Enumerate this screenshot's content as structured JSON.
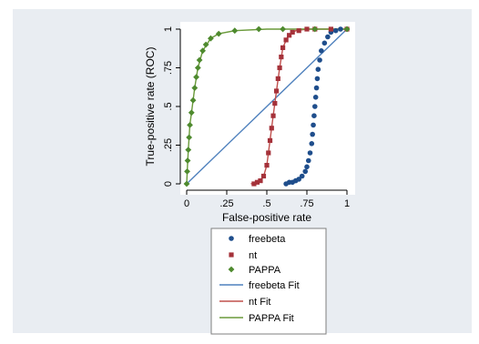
{
  "chart_data": {
    "type": "scatter",
    "title": "",
    "xlabel": "False-positive rate",
    "ylabel": "True-positive rate (ROC)",
    "xlim": [
      0,
      1
    ],
    "ylim": [
      0,
      1
    ],
    "x_ticks": [
      "0",
      ".25",
      ".5",
      ".75",
      "1"
    ],
    "y_ticks": [
      "0",
      ".25",
      ".5",
      ".75",
      "1"
    ],
    "grid": false,
    "legend_position": "bottom",
    "series": [
      {
        "name": "freebeta",
        "marker": "circle",
        "color": "#1f4e8c",
        "points": [
          [
            0.62,
            0
          ],
          [
            0.64,
            0.01
          ],
          [
            0.66,
            0.01
          ],
          [
            0.68,
            0.02
          ],
          [
            0.7,
            0.03
          ],
          [
            0.72,
            0.05
          ],
          [
            0.74,
            0.08
          ],
          [
            0.75,
            0.11
          ],
          [
            0.76,
            0.15
          ],
          [
            0.77,
            0.2
          ],
          [
            0.78,
            0.26
          ],
          [
            0.785,
            0.32
          ],
          [
            0.79,
            0.38
          ],
          [
            0.795,
            0.44
          ],
          [
            0.8,
            0.5
          ],
          [
            0.805,
            0.56
          ],
          [
            0.81,
            0.62
          ],
          [
            0.815,
            0.68
          ],
          [
            0.82,
            0.74
          ],
          [
            0.83,
            0.8
          ],
          [
            0.84,
            0.86
          ],
          [
            0.86,
            0.91
          ],
          [
            0.88,
            0.95
          ],
          [
            0.9,
            0.98
          ],
          [
            0.93,
            0.99
          ],
          [
            0.96,
            1.0
          ],
          [
            1.0,
            1.0
          ]
        ]
      },
      {
        "name": "nt",
        "marker": "square",
        "color": "#a5323a",
        "points": [
          [
            0.42,
            0
          ],
          [
            0.44,
            0.01
          ],
          [
            0.46,
            0.02
          ],
          [
            0.48,
            0.05
          ],
          [
            0.5,
            0.12
          ],
          [
            0.51,
            0.2
          ],
          [
            0.52,
            0.28
          ],
          [
            0.53,
            0.36
          ],
          [
            0.54,
            0.44
          ],
          [
            0.55,
            0.52
          ],
          [
            0.56,
            0.6
          ],
          [
            0.57,
            0.68
          ],
          [
            0.58,
            0.75
          ],
          [
            0.59,
            0.82
          ],
          [
            0.6,
            0.88
          ],
          [
            0.62,
            0.93
          ],
          [
            0.64,
            0.96
          ],
          [
            0.66,
            0.98
          ],
          [
            0.7,
            0.99
          ],
          [
            0.75,
            1.0
          ],
          [
            0.8,
            1.0
          ],
          [
            0.9,
            1.0
          ],
          [
            1.0,
            1.0
          ]
        ]
      },
      {
        "name": "PAPPA",
        "marker": "diamond",
        "color": "#4e8a2e",
        "points": [
          [
            0,
            0
          ],
          [
            0.003,
            0.08
          ],
          [
            0.006,
            0.15
          ],
          [
            0.01,
            0.22
          ],
          [
            0.015,
            0.3
          ],
          [
            0.02,
            0.38
          ],
          [
            0.03,
            0.46
          ],
          [
            0.04,
            0.54
          ],
          [
            0.05,
            0.62
          ],
          [
            0.06,
            0.69
          ],
          [
            0.07,
            0.75
          ],
          [
            0.08,
            0.8
          ],
          [
            0.1,
            0.86
          ],
          [
            0.12,
            0.9
          ],
          [
            0.15,
            0.94
          ],
          [
            0.2,
            0.97
          ],
          [
            0.3,
            0.99
          ],
          [
            0.45,
            1.0
          ],
          [
            0.6,
            1.0
          ],
          [
            0.8,
            1.0
          ],
          [
            1.0,
            1.0
          ]
        ]
      }
    ],
    "fits": [
      {
        "name": "freebeta Fit",
        "type": "line",
        "color": "#4f81bd",
        "points": [
          [
            0,
            0
          ],
          [
            1,
            1
          ]
        ]
      },
      {
        "name": "nt Fit",
        "type": "line",
        "color": "#c0504d",
        "points": [
          [
            0.4,
            0
          ],
          [
            0.45,
            0.01
          ],
          [
            0.48,
            0.05
          ],
          [
            0.5,
            0.12
          ],
          [
            0.52,
            0.28
          ],
          [
            0.54,
            0.44
          ],
          [
            0.56,
            0.6
          ],
          [
            0.58,
            0.75
          ],
          [
            0.6,
            0.88
          ],
          [
            0.63,
            0.95
          ],
          [
            0.68,
            0.99
          ],
          [
            0.75,
            1.0
          ],
          [
            1.0,
            1.0
          ]
        ]
      },
      {
        "name": "PAPPA Fit",
        "type": "line",
        "color": "#6a9a3a",
        "points": [
          [
            0,
            0
          ],
          [
            0.005,
            0.12
          ],
          [
            0.01,
            0.22
          ],
          [
            0.02,
            0.38
          ],
          [
            0.03,
            0.46
          ],
          [
            0.05,
            0.62
          ],
          [
            0.07,
            0.75
          ],
          [
            0.1,
            0.86
          ],
          [
            0.15,
            0.94
          ],
          [
            0.2,
            0.97
          ],
          [
            0.3,
            0.99
          ],
          [
            0.5,
            1.0
          ],
          [
            1.0,
            1.0
          ]
        ]
      }
    ],
    "legend": [
      "freebeta",
      "nt",
      "PAPPA",
      "freebeta Fit",
      "nt Fit",
      "PAPPA Fit"
    ]
  }
}
